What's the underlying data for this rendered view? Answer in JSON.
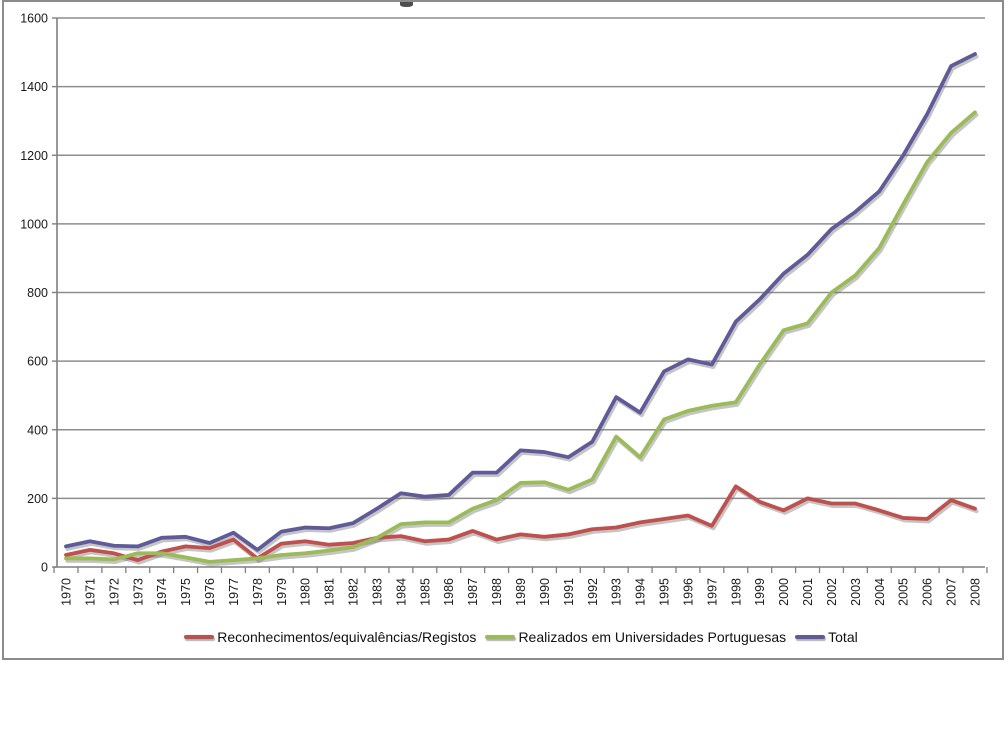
{
  "frame": {
    "border_color": "#8b8b8b",
    "background": "#ffffff"
  },
  "colors": {
    "gridline": "#8e8e8e",
    "axis": "#7f7f7f",
    "tick_text": "#1a1a1a",
    "line_shadow": "rgba(110,110,110,0.40)"
  },
  "chart_data": {
    "type": "line",
    "x_categories": [
      "1970",
      "1971",
      "1972",
      "1973",
      "1974",
      "1975",
      "1976",
      "1977",
      "1978",
      "1979",
      "1980",
      "1981",
      "1982",
      "1983",
      "1984",
      "1985",
      "1986",
      "1987",
      "1988",
      "1989",
      "1990",
      "1991",
      "1992",
      "1993",
      "1994",
      "1995",
      "1996",
      "1997",
      "1998",
      "1999",
      "2000",
      "2001",
      "2002",
      "2003",
      "2004",
      "2005",
      "2006",
      "2007",
      "2008"
    ],
    "ylim": [
      0,
      1600
    ],
    "y_ticks": [
      0,
      200,
      400,
      600,
      800,
      1000,
      1200,
      1400,
      1600
    ],
    "grid": true,
    "legend_position": "bottom",
    "series": [
      {
        "name": "Reconhecimentos/equivalências/Registos",
        "color": "#C0504D",
        "values": [
          35,
          50,
          40,
          20,
          45,
          60,
          55,
          80,
          25,
          68,
          75,
          65,
          70,
          85,
          90,
          75,
          80,
          105,
          80,
          95,
          88,
          95,
          110,
          115,
          130,
          140,
          150,
          120,
          235,
          190,
          165,
          200,
          185,
          185,
          165,
          143,
          140,
          195,
          170
        ]
      },
      {
        "name": "Realizados em Universidades Portuguesas",
        "color": "#9BBB59",
        "values": [
          25,
          25,
          22,
          40,
          40,
          28,
          15,
          20,
          25,
          35,
          40,
          48,
          58,
          85,
          125,
          130,
          130,
          170,
          195,
          245,
          247,
          225,
          255,
          380,
          320,
          430,
          455,
          470,
          480,
          590,
          690,
          710,
          800,
          850,
          930,
          1057,
          1180,
          1265,
          1325
        ]
      },
      {
        "name": "Total",
        "color": "#5F5B9B",
        "values": [
          60,
          75,
          62,
          60,
          85,
          88,
          70,
          100,
          50,
          103,
          115,
          113,
          128,
          170,
          215,
          205,
          210,
          275,
          275,
          340,
          335,
          320,
          365,
          495,
          450,
          570,
          605,
          590,
          715,
          780,
          855,
          910,
          985,
          1035,
          1095,
          1200,
          1320,
          1460,
          1495
        ]
      }
    ]
  }
}
